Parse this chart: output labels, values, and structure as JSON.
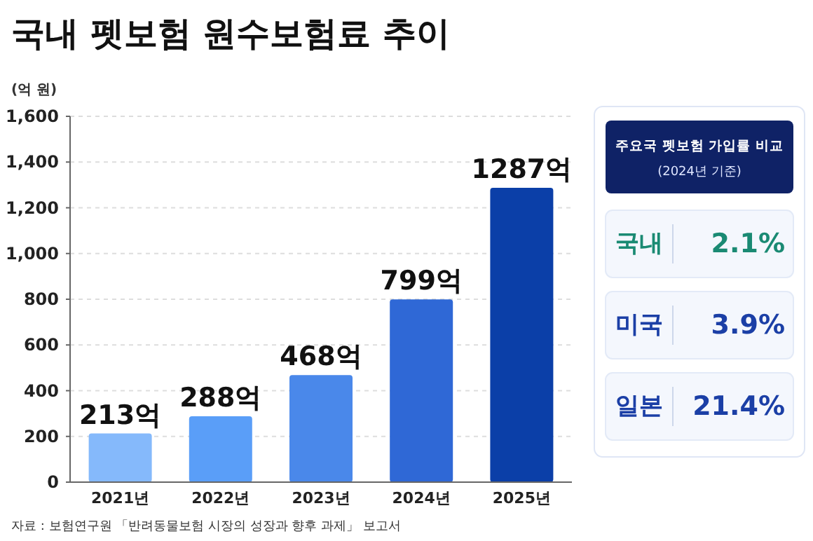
{
  "chart_data": [
    {
      "type": "bar",
      "title": "국내 펫보험 원수보험료 추이",
      "ylabel": "(억 원)",
      "categories": [
        "2021년",
        "2022년",
        "2023년",
        "2024년",
        "2025년"
      ],
      "values": [
        213,
        288,
        468,
        799,
        1287
      ],
      "colors": [
        "#85b9fb",
        "#5a9ef8",
        "#4a88ea",
        "#2f68d6",
        "#0b3fa8"
      ],
      "value_labels": [
        "213억",
        "288억",
        "468억",
        "799억",
        "1287억"
      ],
      "ylim": [
        0,
        1600
      ],
      "yticks": [
        0,
        200,
        400,
        600,
        800,
        {
          "value": 1000,
          "label": "1,000"
        },
        {
          "value": 1200,
          "label": "1,200"
        },
        {
          "value": 1400,
          "label": "1,400"
        },
        {
          "value": 1600,
          "label": "1,600"
        }
      ],
      "grid": "y",
      "annotations": [
        "자료 : 보험연구원 「반려동물보험 시장의 성장과 향후 과제」 보고서"
      ]
    },
    {
      "type": "other",
      "title": "주요국 펫보험 가입률 비교",
      "subtitle": "(2024년 기준)",
      "annotations": [
        "국내",
        "2.1%",
        "미국",
        "3.9%",
        "일본",
        "21.4%"
      ]
    }
  ]
}
